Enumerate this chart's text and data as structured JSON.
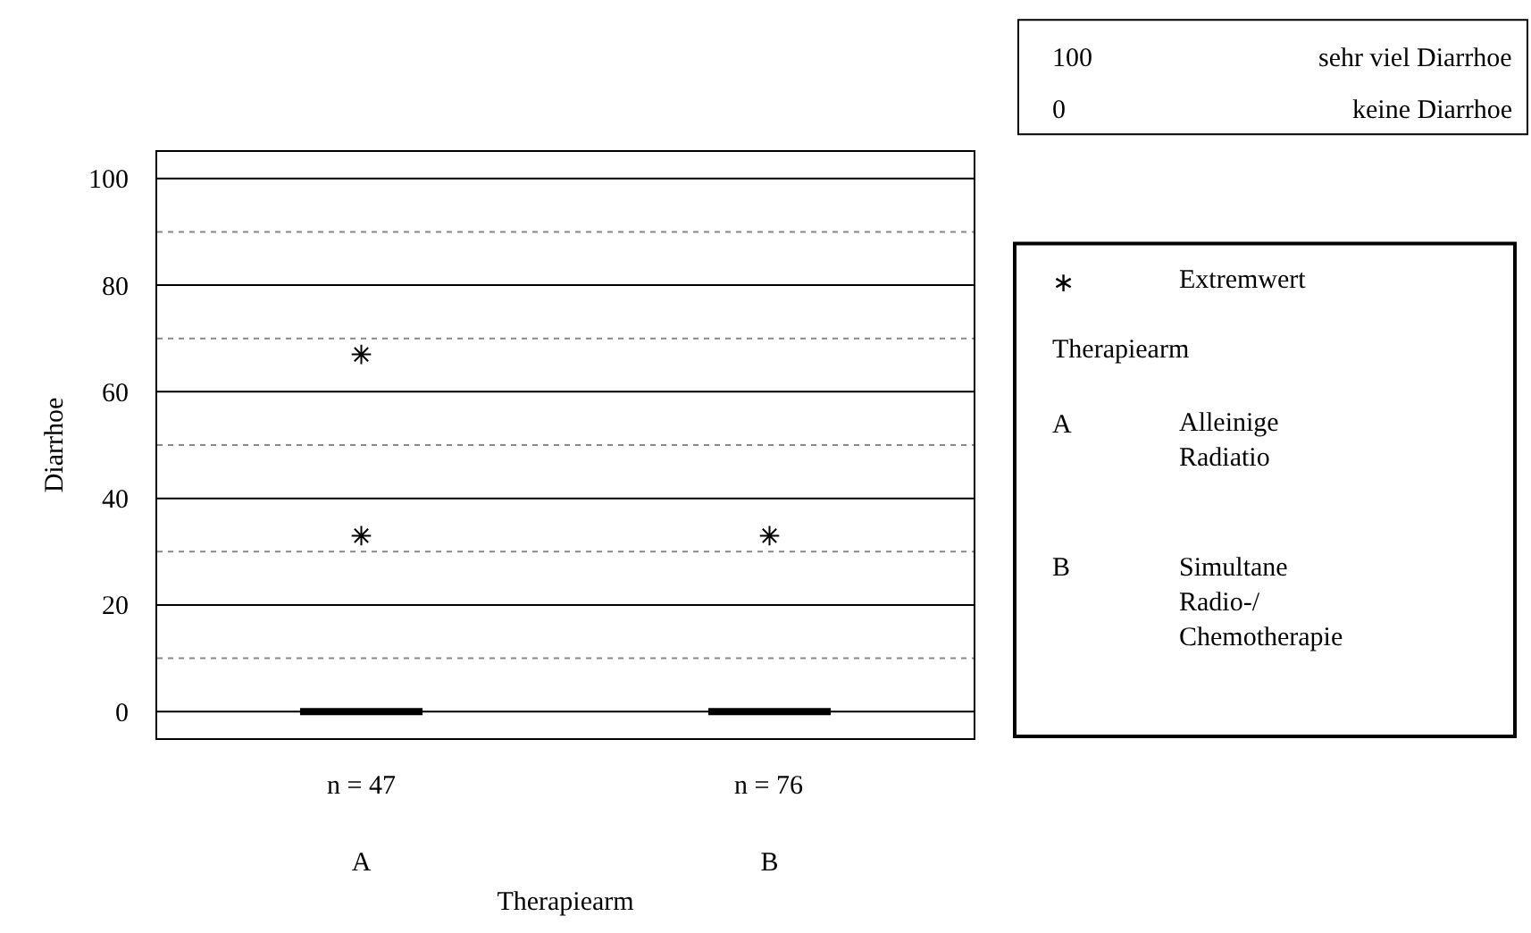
{
  "chart_data": {
    "type": "box",
    "xlabel": "Therapiearm",
    "ylabel": "Diarrhoe",
    "categories": [
      "A",
      "B"
    ],
    "boxes": [
      {
        "low": 0,
        "q1": 0,
        "median": 0,
        "q3": 0,
        "high": 0,
        "outliers": [
          67,
          33
        ]
      },
      {
        "low": 0,
        "q1": 0,
        "median": 0,
        "q3": 0,
        "high": 0,
        "outliers": [
          33
        ]
      }
    ],
    "ylim": [
      -5,
      105
    ],
    "yticks": [
      0,
      {
        "value": 10,
        "label": null
      },
      20,
      {
        "value": 30,
        "label": null
      },
      40,
      {
        "value": 50,
        "label": null
      },
      60,
      {
        "value": 70,
        "label": null
      },
      80,
      {
        "value": 90,
        "label": null
      },
      100
    ],
    "grid": "y",
    "marker": "star",
    "color": "#000000",
    "annotations": [
      "n = 47",
      "n = 76",
      "100",
      "sehr viel Diarrhoe",
      "0",
      "keine Diarrhoe",
      "∗",
      "Extremwert",
      "Therapiearm",
      "A",
      "Alleinige\nRadiatio",
      "B",
      "Simultane\nRadio-/\nChemotherapie"
    ]
  }
}
